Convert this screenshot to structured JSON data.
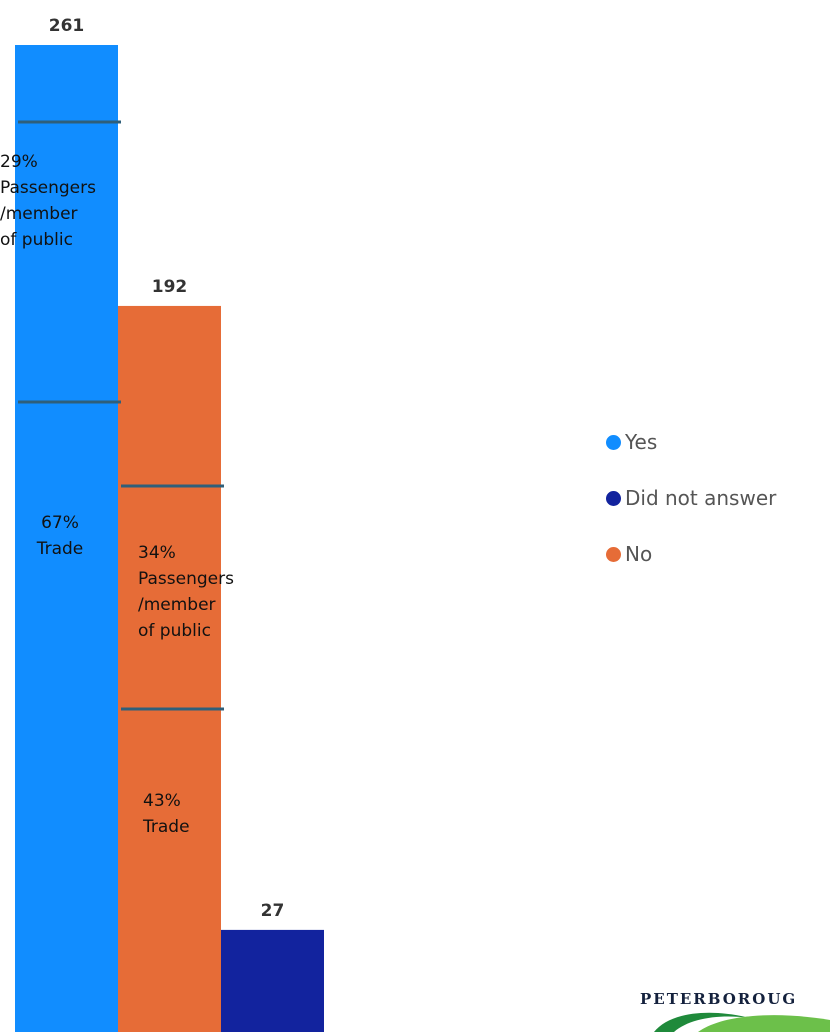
{
  "chart_data": {
    "type": "bar",
    "categories": [
      "Yes",
      "No",
      "Did not answer"
    ],
    "values": [
      261,
      192,
      27
    ],
    "ylim": [
      0,
      261
    ],
    "grid": false,
    "legend_placement": "right",
    "colors": {
      "Yes": "#118DFF",
      "No": "#E66C37",
      "Did not answer": "#12239E"
    },
    "segments": {
      "Yes": [
        {
          "text": "29% Passengers /member of public",
          "lines": [
            "29%",
            "Passengers",
            "/member",
            "of public"
          ]
        },
        {
          "text": "67% Trade",
          "lines": [
            "67%",
            "Trade"
          ]
        }
      ],
      "No": [
        {
          "text": "34% Passengers /member of public",
          "lines": [
            "34%",
            "Passengers",
            "/member",
            "of public"
          ]
        },
        {
          "text": "43% Trade",
          "lines": [
            "43%",
            "Trade"
          ]
        }
      ]
    },
    "divider_color": "#2f5f7a"
  },
  "legend": {
    "items": [
      {
        "label": "Yes",
        "color": "#118DFF"
      },
      {
        "label": "Did not answer",
        "color": "#12239E"
      },
      {
        "label": "No",
        "color": "#E66C37"
      }
    ]
  },
  "logo": {
    "text": "PETERBOROUG",
    "icon": "peterborough-swoosh-logo"
  }
}
